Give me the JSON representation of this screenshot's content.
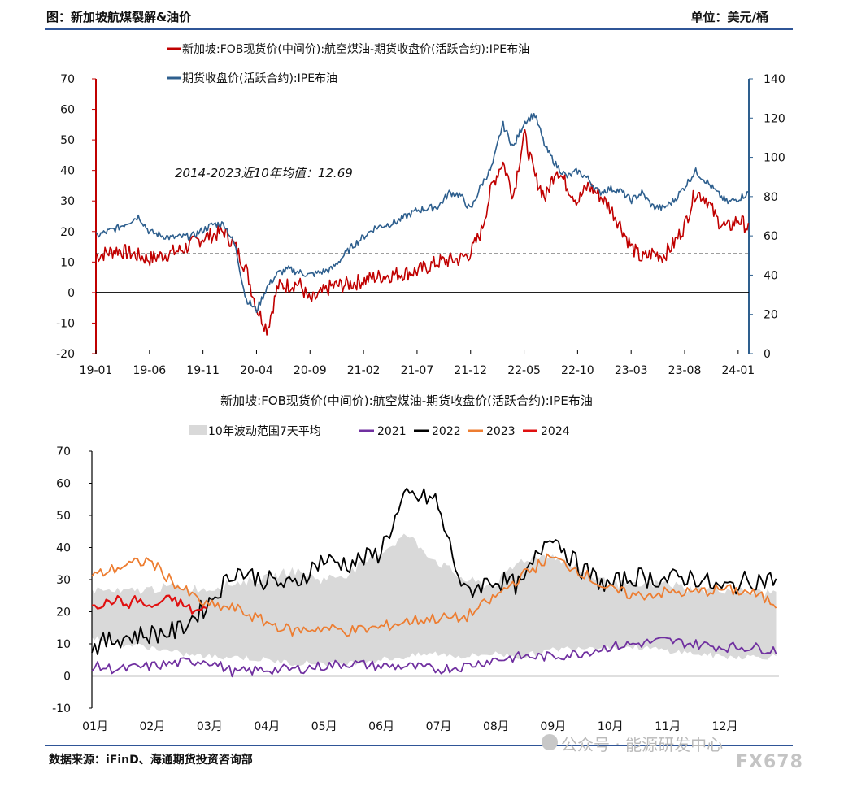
{
  "header": {
    "title": "图：新加坡航煤裂解&油价",
    "unit": "单位：美元/桶"
  },
  "footer": {
    "source": "数据来源：iFinD、海通期货投资咨询部"
  },
  "watermark": {
    "text": "公众号 · 能源研发中心",
    "brand": "FX678",
    "icon": "wechat-icon"
  },
  "colors": {
    "red": "#c00000",
    "blue": "#2e5f8e",
    "black": "#000000",
    "orange": "#ed7d31",
    "purple": "#7030a0",
    "band": "#d9d9d9",
    "rule": "#2f5597"
  },
  "chart_data": [
    {
      "type": "line",
      "legend": [
        "新加坡:FOB现货价(中间价):航空煤油-期货收盘价(活跃合约):IPE布油",
        "期货收盘价(活跃合约):IPE布油"
      ],
      "x_ticks": [
        "19-01",
        "19-06",
        "19-11",
        "20-04",
        "20-09",
        "21-02",
        "21-07",
        "21-12",
        "22-05",
        "22-10",
        "23-03",
        "23-08",
        "24-01"
      ],
      "y_left": {
        "range": [
          -20,
          70
        ],
        "ticks": [
          -20,
          -10,
          0,
          10,
          20,
          30,
          40,
          50,
          60,
          70
        ]
      },
      "y_right": {
        "range": [
          0,
          140
        ],
        "ticks": [
          0,
          20,
          40,
          60,
          80,
          100,
          120,
          140
        ]
      },
      "annotation": "2014-2023近10年均值：12.69",
      "reference_line": 12.69,
      "series": [
        {
          "name": "新加坡:FOB现货价(中间价):航空煤油-期货收盘价(活跃合约):IPE布油",
          "axis": "left",
          "x": [
            "2019-01",
            "2019-03",
            "2019-06",
            "2019-09",
            "2019-11",
            "2020-01",
            "2020-02",
            "2020-03",
            "2020-04",
            "2020-05",
            "2020-06",
            "2020-08",
            "2020-09",
            "2020-11",
            "2021-01",
            "2021-03",
            "2021-05",
            "2021-07",
            "2021-09",
            "2021-11",
            "2021-12",
            "2022-01",
            "2022-02",
            "2022-03",
            "2022-04",
            "2022-05",
            "2022-06",
            "2022-07",
            "2022-08",
            "2022-09",
            "2022-10",
            "2022-11",
            "2022-12",
            "2023-01",
            "2023-02",
            "2023-03",
            "2023-04",
            "2023-05",
            "2023-06",
            "2023-07",
            "2023-08",
            "2023-09",
            "2023-10",
            "2023-11",
            "2023-12",
            "2024-01",
            "2024-02"
          ],
          "y": [
            12,
            14,
            11,
            14,
            18,
            20,
            15,
            8,
            -5,
            -12,
            2,
            3,
            -3,
            2,
            3,
            5,
            6,
            7,
            10,
            11,
            13,
            20,
            35,
            43,
            32,
            52,
            38,
            31,
            41,
            35,
            30,
            35,
            32,
            28,
            22,
            15,
            11,
            13,
            12,
            16,
            22,
            33,
            31,
            24,
            21,
            24,
            21
          ]
        },
        {
          "name": "期货收盘价(活跃合约):IPE布油",
          "axis": "right",
          "x": [
            "2019-01",
            "2019-03",
            "2019-05",
            "2019-06",
            "2019-08",
            "2019-10",
            "2019-12",
            "2020-01",
            "2020-02",
            "2020-03",
            "2020-04",
            "2020-05",
            "2020-06",
            "2020-07",
            "2020-09",
            "2020-11",
            "2021-01",
            "2021-03",
            "2021-05",
            "2021-07",
            "2021-09",
            "2021-10",
            "2021-11",
            "2021-12",
            "2022-01",
            "2022-02",
            "2022-03",
            "2022-04",
            "2022-05",
            "2022-06",
            "2022-07",
            "2022-08",
            "2022-09",
            "2022-10",
            "2022-11",
            "2022-12",
            "2023-01",
            "2023-02",
            "2023-03",
            "2023-04",
            "2023-05",
            "2023-06",
            "2023-07",
            "2023-08",
            "2023-09",
            "2023-10",
            "2023-11",
            "2023-12",
            "2024-01",
            "2024-02"
          ],
          "y": [
            60,
            64,
            70,
            62,
            59,
            60,
            66,
            66,
            55,
            28,
            22,
            34,
            41,
            43,
            40,
            43,
            55,
            64,
            67,
            73,
            75,
            82,
            81,
            73,
            86,
            95,
            117,
            105,
            118,
            122,
            105,
            96,
            90,
            93,
            89,
            82,
            84,
            83,
            78,
            82,
            75,
            74,
            78,
            85,
            93,
            88,
            82,
            77,
            79,
            82
          ]
        }
      ]
    },
    {
      "type": "line",
      "title": "新加坡:FOB现货价(中间价):航空煤油-期货收盘价(活跃合约):IPE布油",
      "legend": [
        "10年波动范围7天平均",
        "2021",
        "2022",
        "2023",
        "2024"
      ],
      "x_ticks": [
        "01月",
        "02月",
        "03月",
        "04月",
        "05月",
        "06月",
        "07月",
        "08月",
        "09月",
        "10月",
        "11月",
        "12月"
      ],
      "y": {
        "range": [
          -10,
          70
        ],
        "ticks": [
          -10,
          0,
          10,
          20,
          30,
          40,
          50,
          60,
          70
        ]
      },
      "band": {
        "name": "10年波动范围7天平均",
        "months": [
          1.0,
          1.5,
          2.0,
          2.5,
          3.0,
          3.5,
          4.0,
          4.5,
          5.0,
          5.5,
          6.0,
          6.5,
          7.0,
          7.5,
          8.0,
          8.5,
          9.0,
          9.5,
          10.0,
          10.5,
          11.0,
          11.5,
          12.0,
          12.5,
          13.0
        ],
        "low": [
          12,
          10,
          9,
          7,
          6,
          6,
          5,
          4,
          4,
          4,
          5,
          6,
          7,
          6,
          7,
          6,
          8,
          9,
          9,
          9,
          8,
          7,
          6,
          6,
          6
        ],
        "high": [
          27,
          26,
          27,
          28,
          27,
          29,
          30,
          33,
          30,
          32,
          38,
          44,
          36,
          30,
          28,
          36,
          38,
          33,
          29,
          28,
          29,
          27,
          27,
          26,
          26
        ]
      },
      "series": [
        {
          "name": "2021",
          "color": "#7030a0",
          "months": [
            1.0,
            1.5,
            2.0,
            2.5,
            3.0,
            3.5,
            4.0,
            4.5,
            5.0,
            5.5,
            6.0,
            6.5,
            7.0,
            7.5,
            8.0,
            8.5,
            9.0,
            9.5,
            10.0,
            10.5,
            11.0,
            11.5,
            12.0,
            12.5,
            13.0
          ],
          "y": [
            3,
            2,
            3,
            4,
            5,
            1,
            2,
            2,
            3,
            4,
            3,
            3,
            2,
            3,
            5,
            6,
            6,
            7,
            9,
            10,
            11,
            10,
            9,
            9,
            8
          ]
        },
        {
          "name": "2022",
          "color": "#000000",
          "months": [
            1.0,
            1.5,
            2.0,
            2.5,
            3.0,
            3.5,
            4.0,
            4.5,
            5.0,
            5.5,
            6.0,
            6.5,
            7.0,
            7.5,
            8.0,
            8.5,
            9.0,
            9.5,
            10.0,
            10.5,
            11.0,
            11.5,
            12.0,
            12.5,
            13.0
          ],
          "y": [
            9,
            12,
            13,
            14,
            22,
            33,
            30,
            28,
            36,
            35,
            38,
            56,
            55,
            26,
            30,
            28,
            45,
            34,
            28,
            31,
            30,
            31,
            27,
            30,
            30
          ]
        },
        {
          "name": "2023",
          "color": "#ed7d31",
          "months": [
            1.0,
            1.5,
            2.0,
            2.5,
            3.0,
            3.5,
            4.0,
            4.5,
            5.0,
            5.5,
            6.0,
            6.5,
            7.0,
            7.5,
            8.0,
            8.5,
            9.0,
            9.5,
            10.0,
            10.5,
            11.0,
            11.5,
            12.0,
            12.5,
            13.0
          ],
          "y": [
            31,
            34,
            36,
            28,
            22,
            21,
            17,
            14,
            15,
            14,
            15,
            17,
            18,
            18,
            24,
            31,
            37,
            33,
            27,
            25,
            26,
            26,
            27,
            26,
            22
          ]
        },
        {
          "name": "2024",
          "color": "#e01010",
          "months": [
            1.0,
            1.2,
            1.4,
            1.6,
            1.8,
            2.0,
            2.2,
            2.4,
            2.6,
            2.8,
            3.0
          ],
          "y": [
            23,
            22,
            24,
            22,
            24,
            21,
            23,
            24,
            22,
            20,
            21
          ]
        }
      ]
    }
  ]
}
